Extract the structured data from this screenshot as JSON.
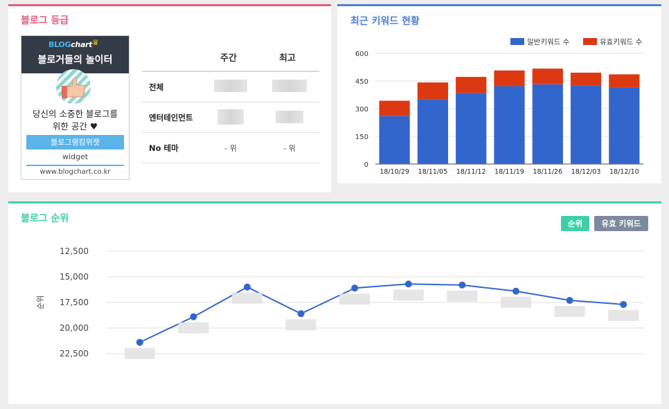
{
  "grade_panel": {
    "title": "블로그 등급",
    "widget": {
      "logo_blog": "BLOG",
      "logo_chart": "chart",
      "slogan": "블로거들의 놀이터",
      "desc_line1": "당신의 소중한 블로그를",
      "desc_line2": "위한 공간 ♥",
      "rank_button": "블로그랭킹위젯",
      "sub": "widget",
      "url": "www.blogchart.co.kr"
    },
    "table": {
      "col_weekly": "주간",
      "col_best": "최고",
      "rows": [
        {
          "label": "전체",
          "weekly": "",
          "best": ""
        },
        {
          "label": "엔터테인먼트",
          "weekly": "",
          "best": ""
        },
        {
          "label": "No 테마",
          "weekly": "- 위",
          "best": "- 위"
        }
      ]
    }
  },
  "keyword_panel": {
    "title": "최근 키워드 현황",
    "legend": {
      "general": "일반키워드 수",
      "valid": "유효키워드 수"
    },
    "colors": {
      "general": "#3366cc",
      "valid": "#dc3912"
    }
  },
  "rank_panel": {
    "title": "블로그 순위",
    "btn_rank": "순위",
    "btn_valid": "유효 키워드",
    "ylabel": "순위",
    "line_color": "#3366cc"
  },
  "chart_data": [
    {
      "type": "bar",
      "stacked": true,
      "categories": [
        "18/10/29",
        "18/11/05",
        "18/11/12",
        "18/11/19",
        "18/11/26",
        "18/12/03",
        "18/12/10"
      ],
      "series": [
        {
          "name": "일반키워드 수",
          "values": [
            260,
            352,
            385,
            422,
            432,
            427,
            416
          ]
        },
        {
          "name": "유효키워드 수",
          "values": [
            83,
            90,
            87,
            85,
            85,
            68,
            70
          ]
        }
      ],
      "yticks": [
        0,
        150,
        300,
        450,
        600
      ],
      "ylim": [
        0,
        600
      ],
      "legend": "top-right",
      "grid": true
    },
    {
      "type": "line",
      "x_count": 10,
      "yticks": [
        "12,500",
        "15,000",
        "17,500",
        "20,000",
        "22,500"
      ],
      "ylim": [
        12500,
        22500
      ],
      "y_reversed": true,
      "ylabel": "순위",
      "values": [
        21400,
        18900,
        16000,
        18600,
        16100,
        15700,
        15800,
        16400,
        17300,
        17700
      ],
      "point_labels_obscured": true,
      "grid": true
    }
  ]
}
